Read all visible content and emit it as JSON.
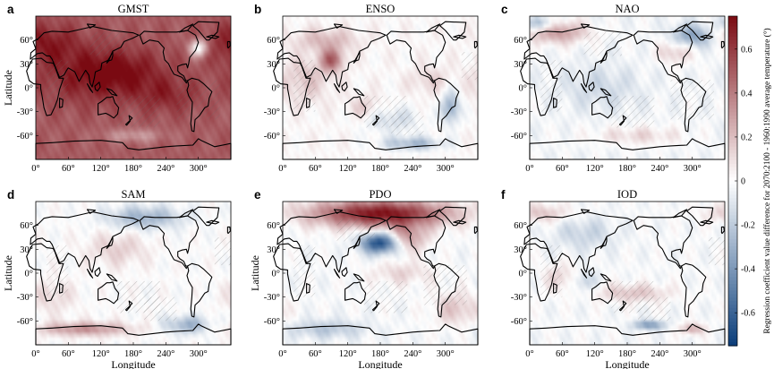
{
  "chart_data": {
    "type": "heatmap",
    "figure_type": "six-panel global map grid",
    "colorbar": {
      "label": "Regression coefficient value difference for 2070:2100 - 1960:1990 average temperature (°)",
      "ticks": [
        "0.6",
        "0.4",
        "0.2",
        "0",
        "-0.2",
        "-0.4",
        "-0.6"
      ],
      "tick_values": [
        0.6,
        0.4,
        0.2,
        0,
        -0.2,
        -0.4,
        -0.6
      ],
      "range": [
        -0.75,
        0.75
      ],
      "colors": {
        "low": "#0a3d7a",
        "mid": "#ffffff",
        "high": "#7a0a12"
      }
    },
    "panels": [
      {
        "letter": "a",
        "title": "GMST",
        "xlabel": "",
        "ylabel": "Latitude",
        "xticks": [
          "0°",
          "60°",
          "120°",
          "180°",
          "240°",
          "300°"
        ],
        "yticks": [
          "60°",
          "30°",
          "0°",
          "-30°",
          "-60°"
        ],
        "xlim": [
          0,
          360
        ],
        "ylim": [
          -90,
          90
        ],
        "base": 0.5,
        "features": [
          {
            "lon": 150,
            "lat": 20,
            "value": 0.25,
            "sx": 60,
            "sy": 20
          },
          {
            "lon": 240,
            "lat": -10,
            "value": 0.15,
            "sx": 40,
            "sy": 15
          },
          {
            "lon": 20,
            "lat": 55,
            "value": 0.2,
            "sx": 45,
            "sy": 18
          },
          {
            "lon": 80,
            "lat": 10,
            "value": 0.1,
            "sx": 60,
            "sy": 25
          },
          {
            "lon": 300,
            "lat": 50,
            "value": -0.55,
            "sx": 12,
            "sy": 8
          },
          {
            "lon": 180,
            "lat": -60,
            "value": -0.2,
            "sx": 40,
            "sy": 6
          }
        ]
      },
      {
        "letter": "b",
        "title": "ENSO",
        "xlabel": "",
        "ylabel": "",
        "xticks": [
          "0°",
          "60°",
          "120°",
          "180°",
          "240°",
          "300°"
        ],
        "yticks": [
          "60°",
          "30°",
          "0°",
          "-30°",
          "-60°"
        ],
        "xlim": [
          0,
          360
        ],
        "ylim": [
          -90,
          90
        ],
        "base": 0.02,
        "features": [
          {
            "lon": 90,
            "lat": 35,
            "value": 0.45,
            "sx": 15,
            "sy": 10
          },
          {
            "lon": 40,
            "lat": 10,
            "value": 0.15,
            "sx": 35,
            "sy": 20
          },
          {
            "lon": 310,
            "lat": -25,
            "value": -0.35,
            "sx": 12,
            "sy": 14
          },
          {
            "lon": 240,
            "lat": -70,
            "value": -0.3,
            "sx": 40,
            "sy": 6
          },
          {
            "lon": 150,
            "lat": -25,
            "value": 0.15,
            "sx": 20,
            "sy": 10
          },
          {
            "lon": 270,
            "lat": 10,
            "value": 0.12,
            "sx": 25,
            "sy": 12
          },
          {
            "lon": 80,
            "lat": 60,
            "value": 0.2,
            "sx": 40,
            "sy": 10
          },
          {
            "lon": 200,
            "lat": -40,
            "value": -0.15,
            "sx": 40,
            "sy": 12
          }
        ]
      },
      {
        "letter": "c",
        "title": "NAO",
        "xlabel": "",
        "ylabel": "",
        "xticks": [
          "0°",
          "60°",
          "120°",
          "180°",
          "240°",
          "300°"
        ],
        "yticks": [
          "60°",
          "30°",
          "0°",
          "-30°",
          "-60°"
        ],
        "xlim": [
          0,
          360
        ],
        "ylim": [
          -90,
          90
        ],
        "base": -0.03,
        "features": [
          {
            "lon": 50,
            "lat": 70,
            "value": 0.35,
            "sx": 40,
            "sy": 10
          },
          {
            "lon": 300,
            "lat": 65,
            "value": -0.35,
            "sx": 25,
            "sy": 10
          },
          {
            "lon": 270,
            "lat": 45,
            "value": 0.2,
            "sx": 25,
            "sy": 10
          },
          {
            "lon": 20,
            "lat": 80,
            "value": -0.3,
            "sx": 20,
            "sy": 6
          },
          {
            "lon": 200,
            "lat": -60,
            "value": 0.15,
            "sx": 60,
            "sy": 8
          },
          {
            "lon": 130,
            "lat": 0,
            "value": -0.12,
            "sx": 50,
            "sy": 20
          }
        ]
      },
      {
        "letter": "d",
        "title": "SAM",
        "xlabel": "Longitude",
        "ylabel": "Latitude",
        "xticks": [
          "0°",
          "60°",
          "120°",
          "180°",
          "240°",
          "300°"
        ],
        "yticks": [
          "60°",
          "30°",
          "0°",
          "-30°",
          "-60°"
        ],
        "xlim": [
          0,
          360
        ],
        "ylim": [
          -90,
          90
        ],
        "base": 0.0,
        "features": [
          {
            "lon": 90,
            "lat": -70,
            "value": 0.35,
            "sx": 60,
            "sy": 6
          },
          {
            "lon": 280,
            "lat": -65,
            "value": -0.3,
            "sx": 30,
            "sy": 8
          },
          {
            "lon": 200,
            "lat": 70,
            "value": -0.3,
            "sx": 50,
            "sy": 10
          },
          {
            "lon": 150,
            "lat": 30,
            "value": 0.15,
            "sx": 40,
            "sy": 15
          },
          {
            "lon": 30,
            "lat": -30,
            "value": 0.12,
            "sx": 30,
            "sy": 15
          }
        ]
      },
      {
        "letter": "e",
        "title": "PDO",
        "xlabel": "Longitude",
        "ylabel": "Latitude",
        "xticks": [
          "0°",
          "60°",
          "120°",
          "180°",
          "240°",
          "300°"
        ],
        "yticks": [
          "60°",
          "30°",
          "0°",
          "-30°",
          "-60°"
        ],
        "xlim": [
          0,
          360
        ],
        "ylim": [
          -90,
          90
        ],
        "base": -0.02,
        "features": [
          {
            "lon": 180,
            "lat": 75,
            "value": 0.75,
            "sx": 90,
            "sy": 12
          },
          {
            "lon": 180,
            "lat": 38,
            "value": -0.7,
            "sx": 25,
            "sy": 9
          },
          {
            "lon": 230,
            "lat": 45,
            "value": 0.35,
            "sx": 25,
            "sy": 12
          },
          {
            "lon": 220,
            "lat": 0,
            "value": 0.15,
            "sx": 40,
            "sy": 10
          },
          {
            "lon": 80,
            "lat": -70,
            "value": -0.2,
            "sx": 50,
            "sy": 8
          },
          {
            "lon": 320,
            "lat": -45,
            "value": 0.2,
            "sx": 30,
            "sy": 15
          }
        ]
      },
      {
        "letter": "f",
        "title": "IOD",
        "xlabel": "Longitude",
        "ylabel": "",
        "xticks": [
          "0°",
          "60°",
          "120°",
          "180°",
          "240°",
          "300°"
        ],
        "yticks": [
          "60°",
          "30°",
          "0°",
          "-30°",
          "-60°"
        ],
        "xlim": [
          0,
          360
        ],
        "ylim": [
          -90,
          90
        ],
        "base": -0.02,
        "features": [
          {
            "lon": 220,
            "lat": -65,
            "value": -0.4,
            "sx": 20,
            "sy": 4
          },
          {
            "lon": 60,
            "lat": -5,
            "value": 0.15,
            "sx": 25,
            "sy": 12
          },
          {
            "lon": 100,
            "lat": -10,
            "value": -0.2,
            "sx": 15,
            "sy": 10
          },
          {
            "lon": 190,
            "lat": -25,
            "value": 0.2,
            "sx": 50,
            "sy": 8
          },
          {
            "lon": 300,
            "lat": -70,
            "value": 0.3,
            "sx": 15,
            "sy": 5
          },
          {
            "lon": 100,
            "lat": 50,
            "value": -0.15,
            "sx": 40,
            "sy": 15
          },
          {
            "lon": 20,
            "lat": 75,
            "value": 0.2,
            "sx": 40,
            "sy": 8
          }
        ]
      }
    ]
  }
}
